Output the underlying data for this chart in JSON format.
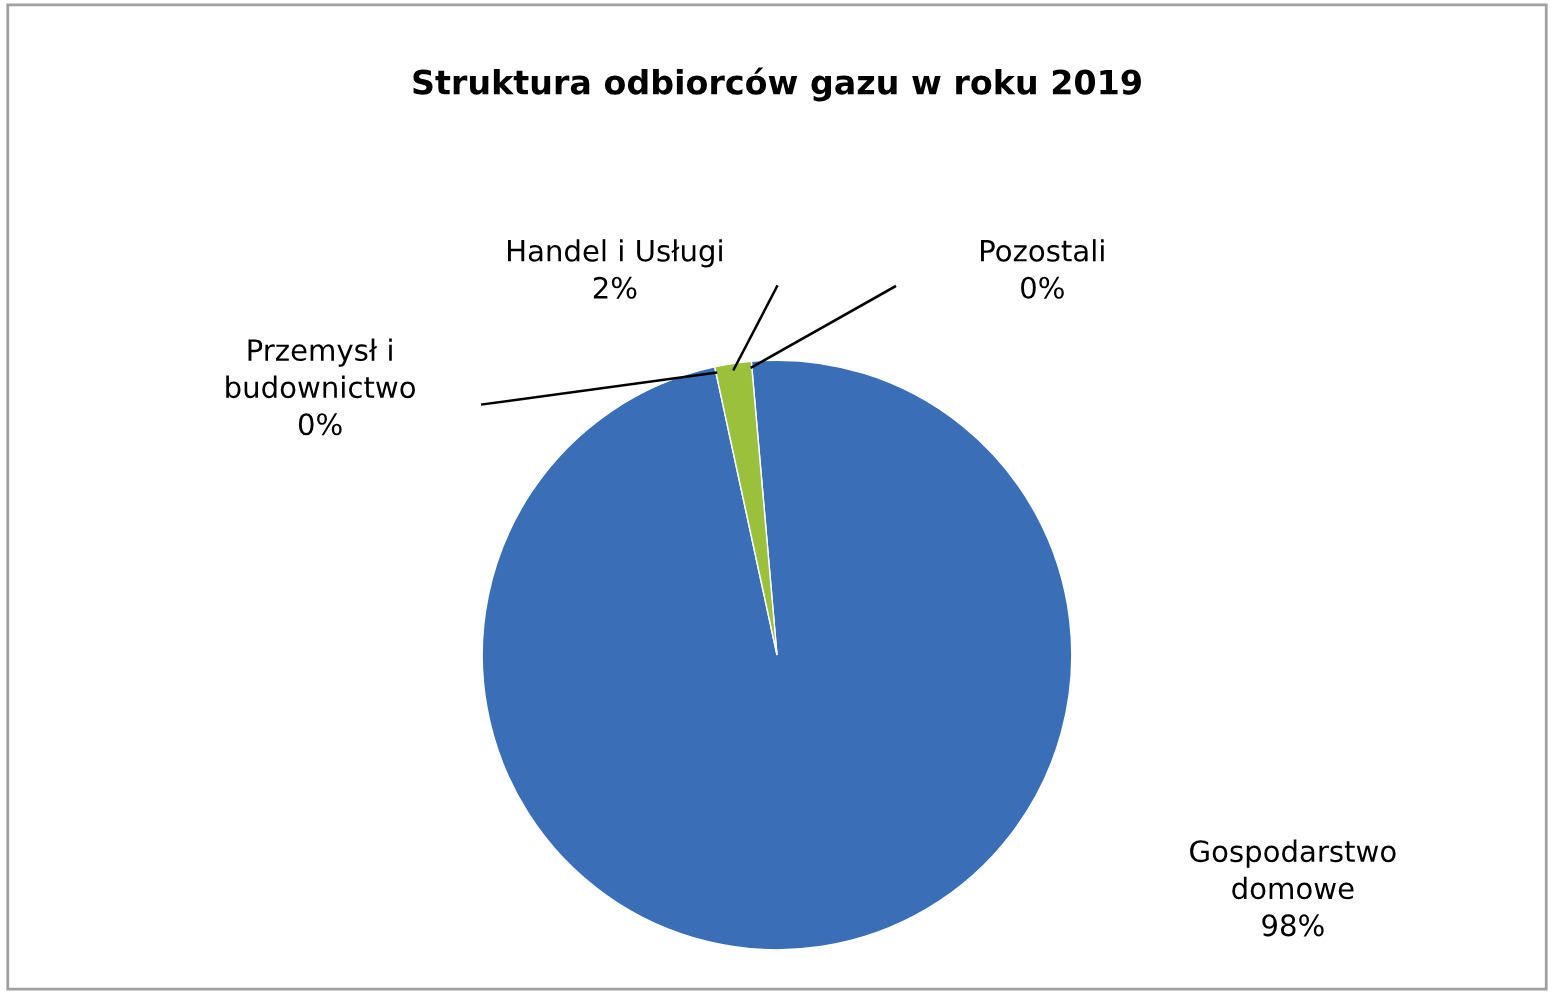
{
  "chart_data": {
    "type": "pie",
    "title": "Struktura odbiorców gazu w roku 2019",
    "categories": [
      "Gospodarstwo\ndomowe",
      "Przemysł i\nbudownictwo",
      "Handel i Usługi",
      "Pozostali"
    ],
    "values": [
      98,
      0,
      2,
      0
    ],
    "colors": [
      "#3a6fb8",
      "#a52a2a",
      "#9bc13c",
      "#7a5a9e"
    ],
    "value_labels": [
      "98%",
      "0%",
      "2%",
      "0%"
    ],
    "legend": false
  }
}
